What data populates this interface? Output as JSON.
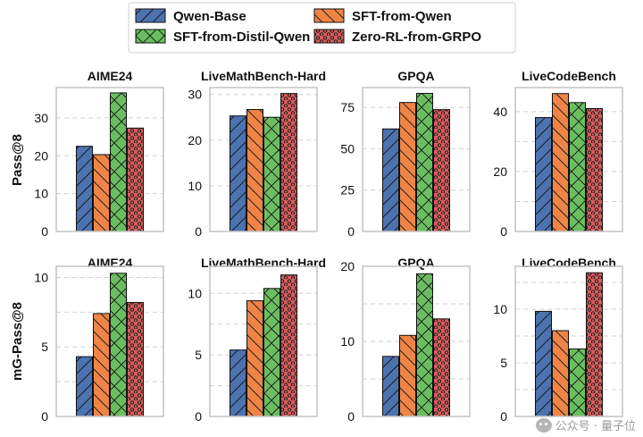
{
  "chart_data": {
    "type": "bar",
    "legend": {
      "placement": "top-center",
      "entries": [
        {
          "name": "Qwen-Base",
          "color": "#4C72B0",
          "hatch": "diagonal"
        },
        {
          "name": "SFT-from-Qwen",
          "color": "#EE8547",
          "hatch": "diagonal-back"
        },
        {
          "name": "SFT-from-Distil-Qwen",
          "color": "#6ABE5F",
          "hatch": "cross"
        },
        {
          "name": "Zero-RL-from-GRPO",
          "color": "#D65F5F",
          "hatch": "dots"
        }
      ]
    },
    "rows": [
      {
        "ylabel": "Pass@8",
        "panels": [
          {
            "title": "AIME24",
            "values": [
              22.5,
              20.3,
              36.6,
              27.3
            ],
            "ylim": [
              0,
              38
            ],
            "yticks": [
              0,
              10,
              20,
              30
            ],
            "grid": [
              0,
              10,
              20,
              30
            ]
          },
          {
            "title": "LiveMathBench-Hard",
            "values": [
              25.3,
              26.7,
              25.0,
              30.2
            ],
            "ylim": [
              0,
              31.5
            ],
            "yticks": [
              0,
              10,
              20,
              30
            ],
            "grid": [
              0,
              10,
              20,
              30
            ]
          },
          {
            "title": "GPQA",
            "values": [
              62.0,
              78.0,
              83.5,
              73.7
            ],
            "ylim": [
              0,
              87
            ],
            "yticks": [
              0,
              25,
              50,
              75
            ],
            "grid": [
              0,
              25,
              50,
              75
            ]
          },
          {
            "title": "LiveCodeBench",
            "values": [
              38.0,
              46.0,
              43.0,
              41.0
            ],
            "ylim": [
              0,
              48
            ],
            "yticks": [
              0,
              20,
              40
            ],
            "grid": [
              0,
              10,
              20,
              30,
              40
            ]
          }
        ]
      },
      {
        "ylabel": "mG-Pass@8",
        "panels": [
          {
            "title": "AIME24",
            "values": [
              4.3,
              7.4,
              10.3,
              8.2
            ],
            "ylim": [
              0,
              10.8
            ],
            "yticks": [
              0,
              5,
              10
            ],
            "grid": [
              0,
              2.5,
              5,
              7.5,
              10
            ]
          },
          {
            "title": "LiveMathBench-Hard",
            "values": [
              5.4,
              9.4,
              10.4,
              11.5
            ],
            "ylim": [
              0,
              12.2
            ],
            "yticks": [
              0,
              5,
              10
            ],
            "grid": [
              0,
              2.5,
              5,
              7.5,
              10
            ]
          },
          {
            "title": "GPQA",
            "values": [
              8.0,
              10.8,
              19.0,
              13.0
            ],
            "ylim": [
              0,
              20
            ],
            "yticks": [
              0,
              10,
              20
            ],
            "grid": [
              0,
              5,
              10,
              15,
              20
            ]
          },
          {
            "title": "LiveCodeBench",
            "values": [
              9.8,
              8.0,
              6.3,
              13.4
            ],
            "ylim": [
              0,
              14
            ],
            "yticks": [
              0,
              5,
              10
            ],
            "grid": [
              0,
              2.5,
              5,
              7.5,
              10,
              12.5
            ]
          }
        ]
      }
    ]
  },
  "watermark": {
    "text": "公众号 · 量子位",
    "icon": "wechat-icon"
  }
}
